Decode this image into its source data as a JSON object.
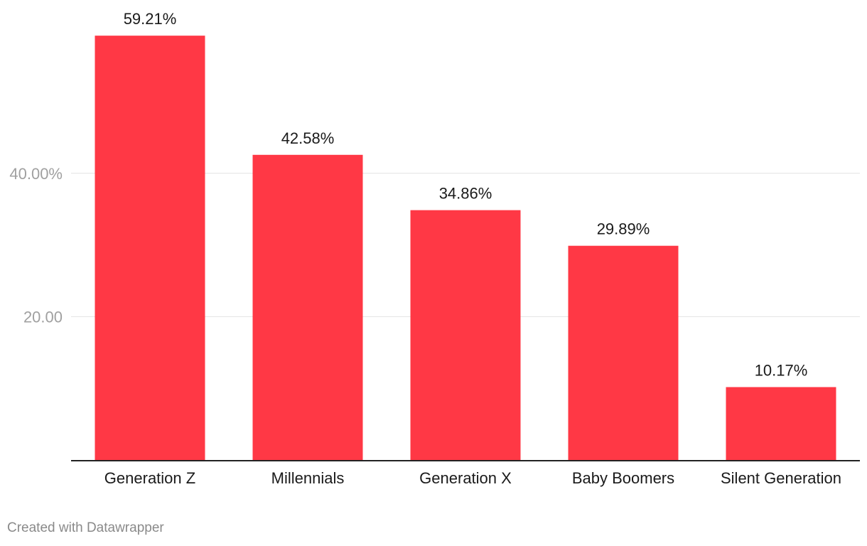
{
  "chart_data": {
    "type": "bar",
    "categories": [
      "Generation Z",
      "Millennials",
      "Generation X",
      "Baby Boomers",
      "Silent Generation"
    ],
    "values": [
      59.21,
      42.58,
      34.86,
      29.89,
      10.17
    ],
    "value_labels": [
      "59.21%",
      "42.58%",
      "34.86%",
      "29.89%",
      "10.17%"
    ],
    "yticks": [
      {
        "value": 20,
        "label": "20.00"
      },
      {
        "value": 40,
        "label": "40.00%"
      }
    ],
    "ylim": [
      0,
      60
    ],
    "grid": true,
    "bar_color": "#ff3845",
    "title": "",
    "xlabel": "",
    "ylabel": ""
  },
  "footer": {
    "credit": "Created with Datawrapper"
  }
}
